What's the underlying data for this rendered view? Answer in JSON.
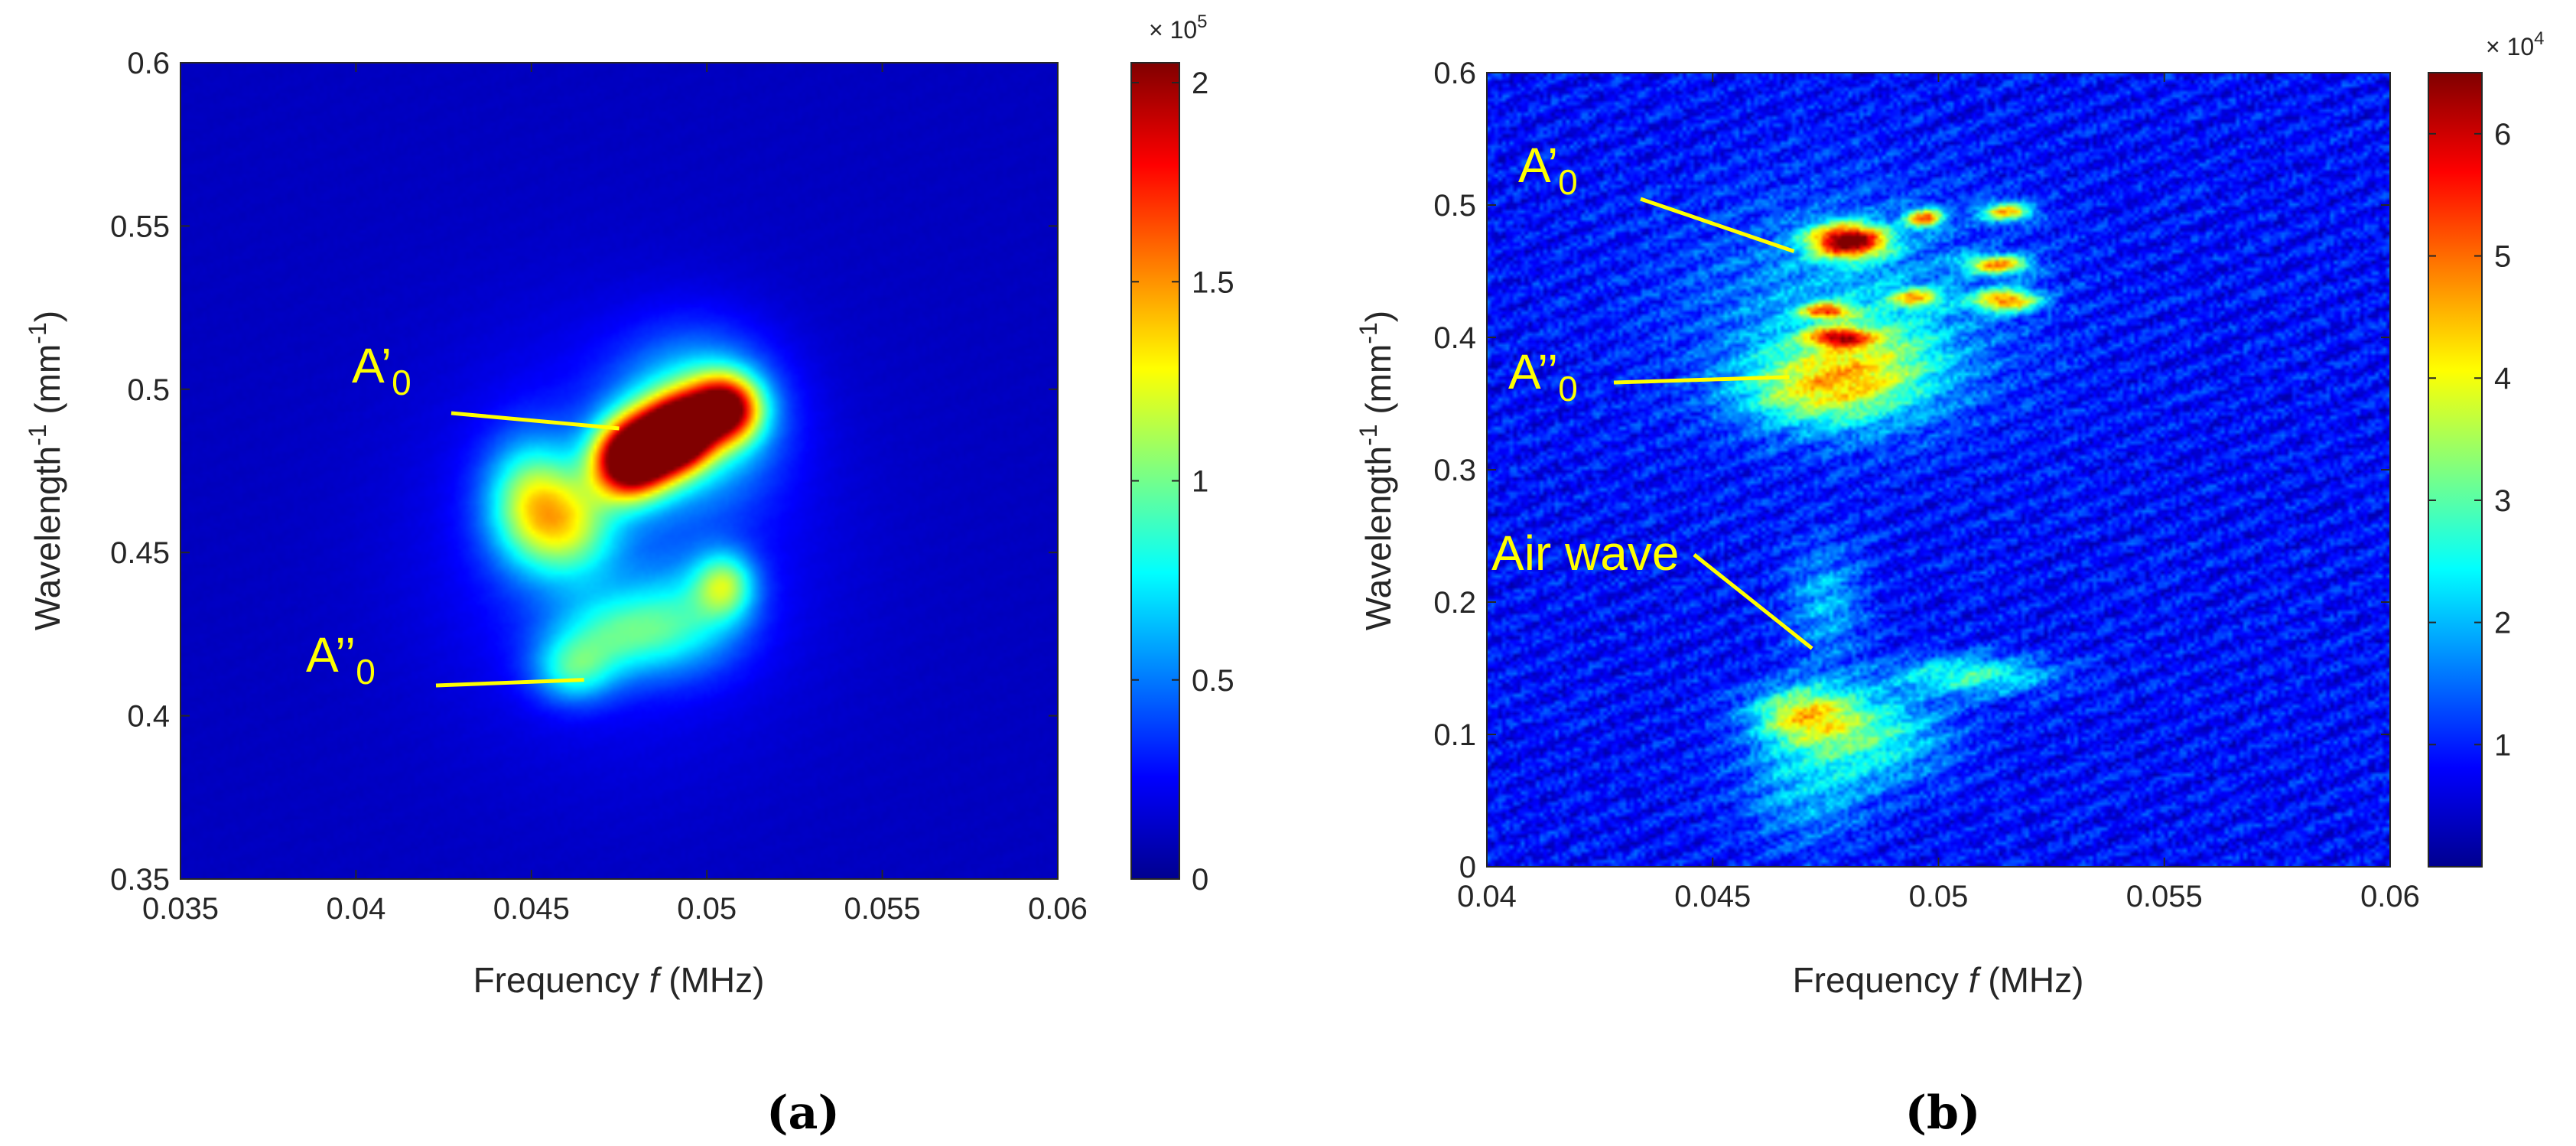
{
  "chart_data": [
    {
      "type": "heatmap",
      "panel_label": "(a)",
      "xlabel_prefix": "Frequency ",
      "xlabel_italic": "f",
      "xlabel_suffix": " (MHz)",
      "ylabel_main": "Wavelength",
      "ylabel_sup1": "-1",
      "ylabel_unit_open": " (mm",
      "ylabel_sup2": "-1",
      "ylabel_unit_close": ")",
      "xlim": [
        0.035,
        0.06
      ],
      "ylim": [
        0.35,
        0.6
      ],
      "xticks": [
        "0.035",
        "0.04",
        "0.045",
        "0.05",
        "0.055",
        "0.06"
      ],
      "yticks": [
        "0.35",
        "0.4",
        "0.45",
        "0.5",
        "0.55",
        "0.6"
      ],
      "colorbar": {
        "ticks": [
          "0",
          "0.5",
          "1",
          "1.5",
          "2"
        ],
        "tick_values": [
          0,
          0.5,
          1,
          1.5,
          2
        ],
        "range": [
          0,
          2.05
        ],
        "multiplier_base": "× 10",
        "multiplier_exp": "5"
      },
      "background_level": 0.03,
      "blobs": [
        {
          "x": 0.0477,
          "y": 0.478,
          "sx": 0.0007,
          "sy": 0.008,
          "v": 1.95
        },
        {
          "x": 0.0493,
          "y": 0.487,
          "sx": 0.0006,
          "sy": 0.007,
          "v": 1.85
        },
        {
          "x": 0.0505,
          "y": 0.494,
          "sx": 0.0007,
          "sy": 0.007,
          "v": 1.85
        },
        {
          "x": 0.0485,
          "y": 0.483,
          "sx": 0.0007,
          "sy": 0.008,
          "v": 1.5
        },
        {
          "x": 0.0497,
          "y": 0.492,
          "sx": 0.0015,
          "sy": 0.016,
          "v": 0.8
        },
        {
          "x": 0.045,
          "y": 0.465,
          "sx": 0.0009,
          "sy": 0.013,
          "v": 0.95
        },
        {
          "x": 0.0462,
          "y": 0.458,
          "sx": 0.0009,
          "sy": 0.011,
          "v": 0.7
        },
        {
          "x": 0.0505,
          "y": 0.44,
          "sx": 0.0006,
          "sy": 0.007,
          "v": 0.8
        },
        {
          "x": 0.0475,
          "y": 0.425,
          "sx": 0.0013,
          "sy": 0.009,
          "v": 0.6
        },
        {
          "x": 0.0462,
          "y": 0.414,
          "sx": 0.0008,
          "sy": 0.007,
          "v": 0.6
        },
        {
          "x": 0.0495,
          "y": 0.43,
          "sx": 0.0012,
          "sy": 0.011,
          "v": 0.45
        },
        {
          "x": 0.0475,
          "y": 0.455,
          "sx": 0.0035,
          "sy": 0.04,
          "v": 0.28
        }
      ],
      "annotations": [
        {
          "label": "A’",
          "sub": "0",
          "tip_x": 0.0475,
          "tip_y": 0.488
        },
        {
          "label": "A’’",
          "sub": "0",
          "tip_x": 0.0465,
          "tip_y": 0.411
        }
      ]
    },
    {
      "type": "heatmap",
      "panel_label": "(b)",
      "xlabel_prefix": "Frequency ",
      "xlabel_italic": "f",
      "xlabel_suffix": " (MHz)",
      "ylabel_main": "Wavelength",
      "ylabel_sup1": "-1",
      "ylabel_unit_open": " (mm",
      "ylabel_sup2": "-1",
      "ylabel_unit_close": ")",
      "xlim": [
        0.04,
        0.06
      ],
      "ylim": [
        0,
        0.6
      ],
      "xticks": [
        "0.04",
        "0.045",
        "0.05",
        "0.055",
        "0.06"
      ],
      "yticks": [
        "0",
        "0.1",
        "0.2",
        "0.3",
        "0.4",
        "0.5",
        "0.6"
      ],
      "colorbar": {
        "ticks": [
          "1",
          "2",
          "3",
          "4",
          "5",
          "6"
        ],
        "tick_values": [
          1,
          2,
          3,
          4,
          5,
          6
        ],
        "range": [
          0,
          6.5
        ],
        "multiplier_base": "× 10",
        "multiplier_exp": "4"
      },
      "background_level": 0.6,
      "blobs": [
        {
          "x": 0.048,
          "y": 0.473,
          "sx": 0.0006,
          "sy": 0.009,
          "v": 6.3
        },
        {
          "x": 0.0497,
          "y": 0.49,
          "sx": 0.0003,
          "sy": 0.005,
          "v": 4.2
        },
        {
          "x": 0.0515,
          "y": 0.495,
          "sx": 0.0004,
          "sy": 0.005,
          "v": 3.8
        },
        {
          "x": 0.0513,
          "y": 0.455,
          "sx": 0.0005,
          "sy": 0.005,
          "v": 4.0
        },
        {
          "x": 0.0515,
          "y": 0.428,
          "sx": 0.0005,
          "sy": 0.006,
          "v": 4.2
        },
        {
          "x": 0.0475,
          "y": 0.42,
          "sx": 0.0004,
          "sy": 0.004,
          "v": 3.8
        },
        {
          "x": 0.0478,
          "y": 0.4,
          "sx": 0.0005,
          "sy": 0.005,
          "v": 3.8
        },
        {
          "x": 0.0495,
          "y": 0.43,
          "sx": 0.0004,
          "sy": 0.005,
          "v": 3.0
        },
        {
          "x": 0.0472,
          "y": 0.36,
          "sx": 0.0012,
          "sy": 0.02,
          "v": 2.3
        },
        {
          "x": 0.0485,
          "y": 0.38,
          "sx": 0.0012,
          "sy": 0.025,
          "v": 1.9
        },
        {
          "x": 0.047,
          "y": 0.115,
          "sx": 0.0008,
          "sy": 0.015,
          "v": 3.0
        },
        {
          "x": 0.0485,
          "y": 0.1,
          "sx": 0.0012,
          "sy": 0.025,
          "v": 1.9
        },
        {
          "x": 0.0508,
          "y": 0.145,
          "sx": 0.0012,
          "sy": 0.01,
          "v": 2.1
        },
        {
          "x": 0.0475,
          "y": 0.2,
          "sx": 0.0006,
          "sy": 0.03,
          "v": 1.3
        },
        {
          "x": 0.048,
          "y": 0.42,
          "sx": 0.0025,
          "sy": 0.06,
          "v": 1.2
        },
        {
          "x": 0.047,
          "y": 0.06,
          "sx": 0.001,
          "sy": 0.03,
          "v": 1.2
        }
      ],
      "annotations": [
        {
          "label": "A’",
          "sub": "0",
          "tip_x": 0.0468,
          "tip_y": 0.465
        },
        {
          "label": "A’’",
          "sub": "0",
          "tip_x": 0.0467,
          "tip_y": 0.37
        },
        {
          "label": "Air wave",
          "sub": "",
          "tip_x": 0.0472,
          "tip_y": 0.165
        }
      ]
    }
  ]
}
